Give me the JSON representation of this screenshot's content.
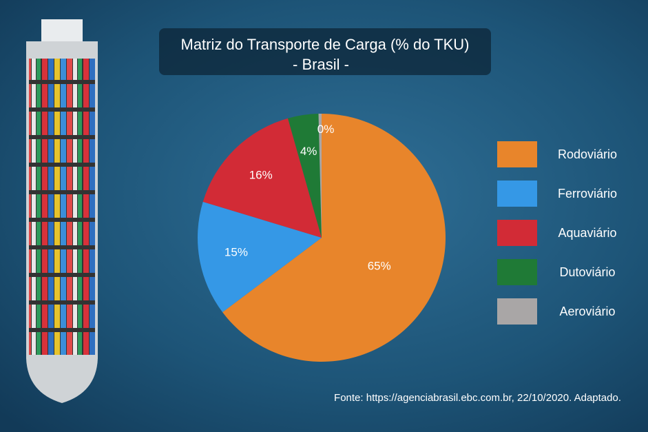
{
  "chart_data": {
    "type": "pie",
    "title": "Matriz do Transporte de Carga (% do TKU)",
    "subtitle": "-  Brasil -",
    "categories": [
      "Rodoviário",
      "Ferroviário",
      "Aquaviário",
      "Dutoviário",
      "Aeroviário"
    ],
    "values": [
      65,
      15,
      16,
      4,
      0.4
    ],
    "value_labels": [
      "65%",
      "15%",
      "16%",
      "4%",
      "0%"
    ],
    "colors": [
      "#e8852b",
      "#3598e6",
      "#d22b36",
      "#1f7a36",
      "#a9a6a6"
    ],
    "legend": "right",
    "source": "Fonte: https://agenciabrasil.ebc.com.br, 22/10/2020. Adaptado."
  }
}
